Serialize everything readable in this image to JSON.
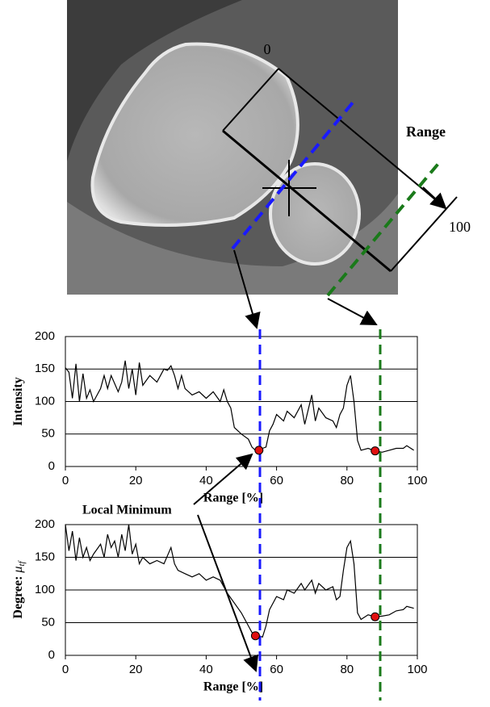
{
  "image_labels": {
    "start": "0",
    "range": "Range",
    "end": "100",
    "local_minimum": "Local Minimum"
  },
  "chart_data": [
    {
      "type": "line",
      "xlabel": "Range [%]",
      "ylabel": "Intensity",
      "xlim": [
        0,
        100
      ],
      "ylim": [
        0,
        200
      ],
      "xticks": [
        0,
        20,
        40,
        60,
        80,
        100
      ],
      "yticks": [
        0,
        50,
        100,
        150,
        200
      ],
      "grid": true,
      "x": [
        0,
        1,
        2,
        3,
        4,
        5,
        6,
        7,
        8,
        10,
        11,
        12,
        13,
        15,
        16,
        17,
        18,
        19,
        20,
        21,
        22,
        24,
        26,
        28,
        29,
        30,
        31,
        32,
        33,
        34,
        36,
        38,
        40,
        42,
        44,
        45,
        46,
        47,
        48,
        50,
        52,
        53,
        54,
        55,
        56,
        57,
        58,
        59,
        60,
        62,
        63,
        65,
        67,
        68,
        70,
        71,
        72,
        74,
        76,
        77,
        78,
        79,
        80,
        81,
        82,
        83,
        84,
        86,
        88,
        90,
        92,
        94,
        96,
        97,
        99
      ],
      "series": [
        {
          "color": "#000000",
          "values": [
            152,
            145,
            105,
            158,
            100,
            143,
            105,
            118,
            100,
            120,
            140,
            120,
            140,
            115,
            130,
            163,
            120,
            150,
            110,
            160,
            125,
            140,
            130,
            150,
            148,
            155,
            140,
            120,
            140,
            120,
            110,
            115,
            105,
            115,
            100,
            118,
            100,
            90,
            60,
            50,
            42,
            30,
            25,
            25,
            28,
            30,
            55,
            65,
            80,
            70,
            85,
            75,
            95,
            65,
            110,
            70,
            90,
            75,
            70,
            60,
            80,
            90,
            125,
            140,
            100,
            40,
            25,
            28,
            24,
            22,
            25,
            28,
            28,
            32,
            25
          ]
        }
      ],
      "markers": {
        "color": "#e01010",
        "x": [
          55,
          88
        ],
        "values": [
          25,
          24
        ]
      }
    },
    {
      "type": "line",
      "xlabel": "Range [%]",
      "ylabel": "Degree: ",
      "ylabel_symbol": "μ",
      "ylabel_subscript": "tf",
      "xlim": [
        0,
        100
      ],
      "ylim": [
        0,
        200
      ],
      "xticks": [
        0,
        20,
        40,
        60,
        80,
        100
      ],
      "yticks": [
        0,
        50,
        100,
        150,
        200
      ],
      "grid": true,
      "x": [
        0,
        1,
        2,
        3,
        4,
        5,
        6,
        7,
        8,
        10,
        11,
        12,
        13,
        14,
        15,
        16,
        17,
        18,
        19,
        20,
        21,
        22,
        24,
        26,
        28,
        30,
        31,
        32,
        34,
        36,
        38,
        40,
        42,
        44,
        46,
        48,
        50,
        52,
        53,
        54,
        55,
        56,
        57,
        58,
        60,
        62,
        63,
        65,
        67,
        68,
        70,
        71,
        72,
        74,
        76,
        77,
        78,
        79,
        80,
        81,
        82,
        83,
        84,
        86,
        88,
        90,
        92,
        94,
        96,
        97,
        99
      ],
      "series": [
        {
          "color": "#000000",
          "values": [
            200,
            160,
            190,
            145,
            180,
            150,
            165,
            145,
            155,
            170,
            150,
            185,
            165,
            175,
            150,
            185,
            160,
            200,
            155,
            170,
            140,
            150,
            140,
            145,
            140,
            165,
            140,
            130,
            125,
            120,
            125,
            115,
            120,
            115,
            95,
            80,
            65,
            45,
            35,
            30,
            30,
            28,
            45,
            70,
            90,
            85,
            100,
            95,
            110,
            100,
            115,
            95,
            110,
            100,
            105,
            85,
            90,
            130,
            165,
            175,
            140,
            65,
            55,
            62,
            59,
            60,
            62,
            68,
            70,
            75,
            72
          ]
        }
      ],
      "markers": {
        "color": "#e01010",
        "x": [
          54,
          88
        ],
        "values": [
          30,
          59
        ]
      }
    }
  ]
}
